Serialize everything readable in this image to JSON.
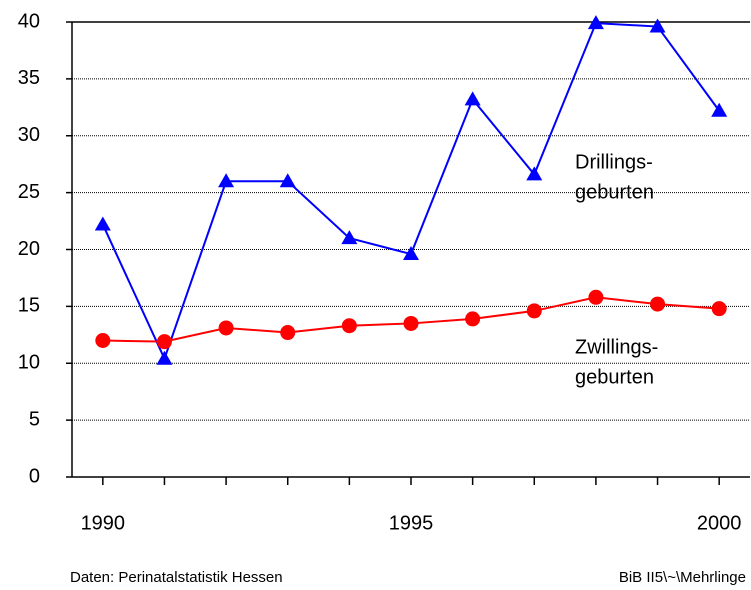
{
  "chart_data": {
    "type": "line",
    "x": [
      1990,
      1991,
      1992,
      1993,
      1994,
      1995,
      1996,
      1997,
      1998,
      1999,
      2000
    ],
    "xlim": [
      1989.5,
      2000.5
    ],
    "xticks": [
      1990,
      1995,
      2000
    ],
    "ylim": [
      0,
      40
    ],
    "yticks": [
      0,
      5,
      10,
      15,
      20,
      25,
      30,
      35,
      40
    ],
    "grid": true,
    "series": [
      {
        "label_lines": [
          "Drillings-",
          "geburten"
        ],
        "color": "#0000ff",
        "marker": "triangle",
        "values": [
          22.2,
          10.4,
          26.0,
          26.0,
          21.0,
          19.6,
          33.2,
          26.6,
          39.9,
          39.6,
          32.2
        ]
      },
      {
        "label_lines": [
          "Zwillings-",
          "geburten"
        ],
        "color": "#ff0000",
        "marker": "circle",
        "values": [
          12.0,
          11.9,
          13.1,
          12.7,
          13.3,
          13.5,
          13.9,
          14.6,
          15.8,
          15.2,
          14.8
        ]
      }
    ],
    "source": "Daten: Perinatalstatistik Hessen",
    "reference": "BiB II5\\~\\Mehrlinge"
  }
}
